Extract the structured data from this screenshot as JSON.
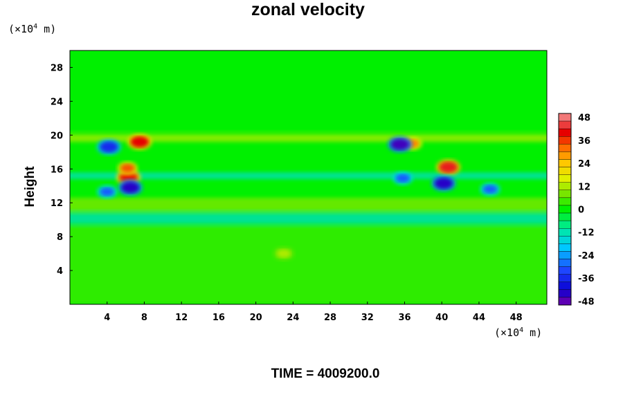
{
  "chart_data": {
    "type": "heatmap",
    "title": "zonal velocity",
    "xlabel": "",
    "ylabel": "Height",
    "x_unit": {
      "prefix": "(×10",
      "exp": "4",
      "suffix": " m)"
    },
    "y_unit": {
      "prefix": "(×10",
      "exp": "4",
      "suffix": " m)"
    },
    "xlim": [
      0,
      51.3
    ],
    "ylim": [
      0,
      30
    ],
    "x_ticks": [
      4,
      8,
      12,
      16,
      20,
      24,
      28,
      32,
      36,
      40,
      44,
      48
    ],
    "y_ticks": [
      4,
      8,
      12,
      16,
      20,
      24,
      28
    ],
    "colorbar": {
      "min": -50,
      "max": 50,
      "step": 4,
      "tick_values": [
        48,
        36,
        24,
        12,
        0,
        -12,
        -24,
        -36,
        -48
      ]
    },
    "features": [
      {
        "x": 7.5,
        "y": 19.2,
        "value": 40
      },
      {
        "x": 6.3,
        "y": 15.0,
        "value": 38
      },
      {
        "x": 6.2,
        "y": 16.1,
        "value": 34
      },
      {
        "x": 40.7,
        "y": 16.2,
        "value": 42
      },
      {
        "x": 36.8,
        "y": 19.0,
        "value": 30
      },
      {
        "x": 4.2,
        "y": 18.6,
        "value": -36
      },
      {
        "x": 6.5,
        "y": 13.8,
        "value": -44
      },
      {
        "x": 4.0,
        "y": 13.3,
        "value": -30
      },
      {
        "x": 35.5,
        "y": 18.9,
        "value": -46
      },
      {
        "x": 40.2,
        "y": 14.3,
        "value": -44
      },
      {
        "x": 35.8,
        "y": 14.9,
        "value": -30
      },
      {
        "x": 45.2,
        "y": 13.6,
        "value": -30
      },
      {
        "x": 23.0,
        "y": 6.0,
        "value": 12
      }
    ],
    "bands": [
      {
        "y_range": [
          20.5,
          30
        ],
        "value": 0
      },
      {
        "y_range": [
          19.2,
          20.1
        ],
        "value": 12
      },
      {
        "y_range": [
          11.0,
          12.6
        ],
        "value": 9
      },
      {
        "y_range": [
          9.5,
          10.8
        ],
        "value": -14
      },
      {
        "y_range": [
          14.8,
          15.6
        ],
        "value": -14
      },
      {
        "y_range": [
          0,
          9.3
        ],
        "value": 4
      }
    ]
  },
  "footer": "TIME = 4009200.0"
}
